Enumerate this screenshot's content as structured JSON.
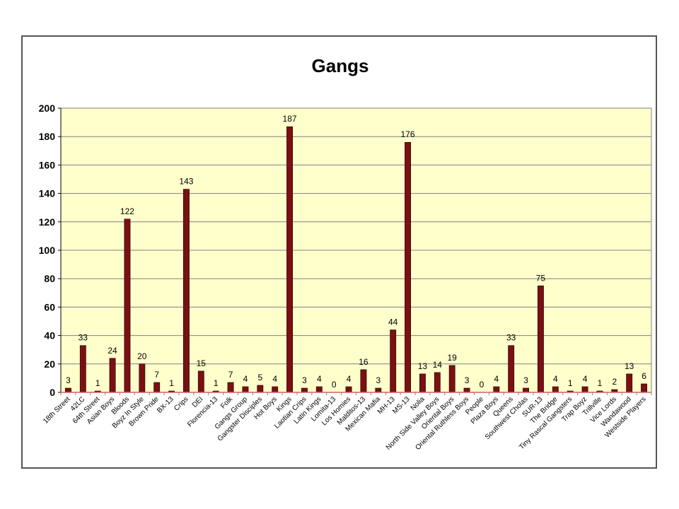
{
  "chart_data": {
    "type": "bar",
    "title": "Gangs",
    "xlabel": "",
    "ylabel": "",
    "ylim": [
      0,
      200
    ],
    "yticks": [
      0,
      20,
      40,
      60,
      80,
      100,
      120,
      140,
      160,
      180,
      200
    ],
    "grid": true,
    "legend": "none",
    "colors": {
      "bar": "#7B0F12",
      "plot_bg": "#FFFFCC",
      "grid": "#808080",
      "axis": "#CC6666"
    },
    "categories": [
      "18th Street",
      "42LC",
      "64th Street",
      "Asian Boys",
      "Bloods",
      "Boyz In Style",
      "Brown Pride",
      "BX-13",
      "Crips",
      "DEI",
      "Florencia-13",
      "Folk",
      "Gangs Group",
      "Gangster Disciples",
      "Hot Boys",
      "Kings",
      "Laotian Crips",
      "Latin Kings",
      "Lomita-13",
      "Los Homies",
      "Malditos-13",
      "Mexican Mafia",
      "MH-13",
      "MS-13",
      "Nolia",
      "North Side Valley Boys",
      "Oriental Boys",
      "Oriental Ruthless Boys",
      "People",
      "Plaza Boys",
      "Queens",
      "Southwest Cholas",
      "SUR-13",
      "The Bridge",
      "Tiny Rascal Gangsters",
      "Trap Boyz",
      "Trillville",
      "Vice Lords",
      "Wandawood",
      "Westside Players"
    ],
    "values": [
      3,
      33,
      1,
      24,
      122,
      20,
      7,
      1,
      143,
      15,
      1,
      7,
      4,
      5,
      4,
      187,
      3,
      4,
      0,
      4,
      16,
      3,
      44,
      176,
      13,
      14,
      19,
      3,
      0,
      4,
      33,
      3,
      75,
      4,
      1,
      4,
      1,
      2,
      13,
      6
    ]
  }
}
